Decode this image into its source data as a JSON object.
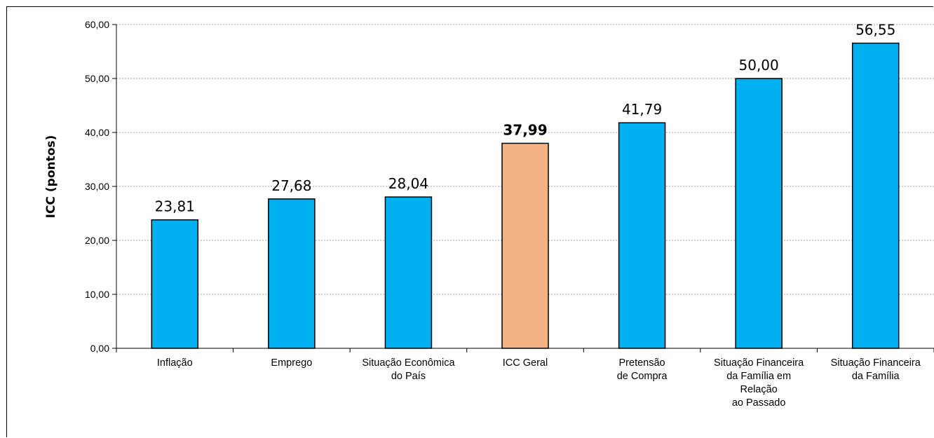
{
  "chart_data": {
    "type": "bar",
    "title": "",
    "xlabel": "",
    "ylabel": "ICC (pontos)",
    "ylim": [
      0,
      60
    ],
    "yticks": [
      "0,00",
      "10,00",
      "20,00",
      "30,00",
      "40,00",
      "50,00",
      "60,00"
    ],
    "grid": true,
    "legend": "none",
    "categories": [
      [
        "Inflação"
      ],
      [
        "Emprego"
      ],
      [
        "Situação Econômica",
        "do País"
      ],
      [
        "ICC Geral"
      ],
      [
        "Pretensão",
        "de Compra"
      ],
      [
        "Situação Financeira",
        "da Família em",
        "Relação",
        "ao Passado"
      ],
      [
        "Situação Financeira",
        "da Família"
      ]
    ],
    "values": [
      23.81,
      27.68,
      28.04,
      37.99,
      41.79,
      50.0,
      56.55
    ],
    "value_labels": [
      "23,81",
      "27,68",
      "28,04",
      "37,99",
      "41,79",
      "50,00",
      "56,55"
    ],
    "highlight_index": 3,
    "colors": {
      "bar": "#00b0f0",
      "highlight": "#f4b183",
      "grid": "#a6a6a6",
      "axis": "#000000"
    }
  }
}
